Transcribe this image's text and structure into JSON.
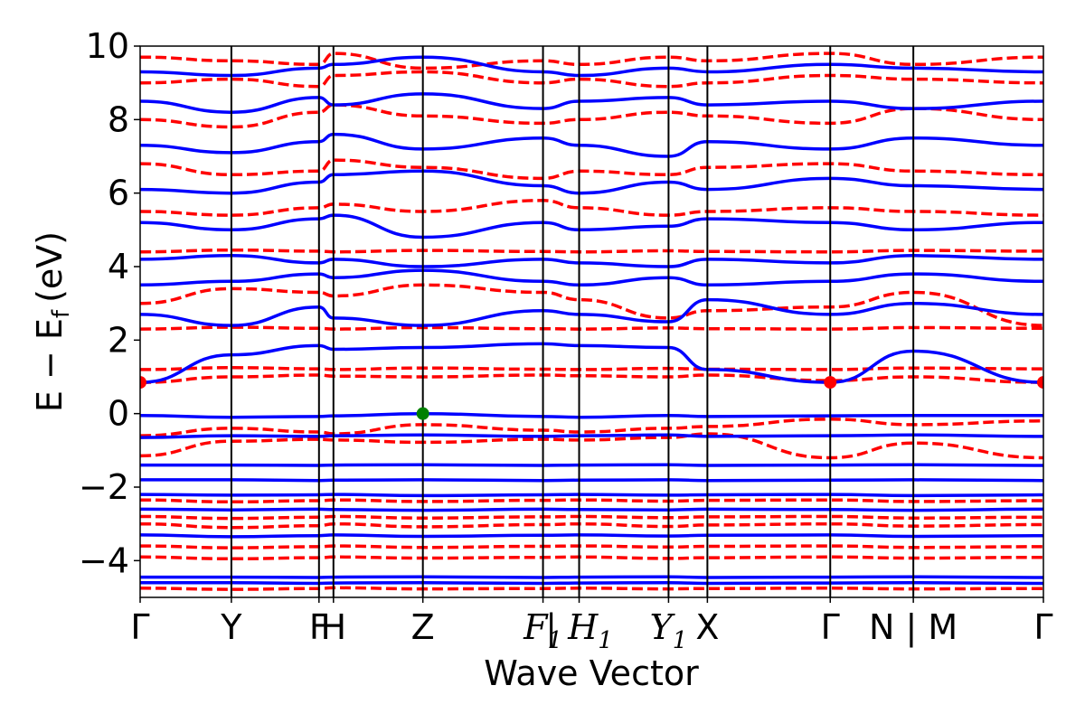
{
  "chart_data": {
    "type": "line",
    "xlabel": "Wave Vector",
    "ylabel": "E − E",
    "ylabel_subscript": "f",
    "ylabel_unit": "(eV)",
    "ylim": [
      -5,
      10
    ],
    "xlim": [
      0,
      10
    ],
    "yticks": [
      10,
      8,
      6,
      4,
      2,
      0,
      -2,
      -4
    ],
    "ytick_labels": [
      "10",
      "8",
      "6",
      "4",
      "2",
      "0",
      "−2",
      "−4"
    ],
    "grid": false,
    "legend": "none",
    "kpath": [
      {
        "x": 0.0,
        "label": "Γ",
        "italic": false
      },
      {
        "x": 1.01,
        "label": "Y",
        "italic": false
      },
      {
        "x": 1.98,
        "label": "F",
        "italic": false
      },
      {
        "x": 2.14,
        "label": "H",
        "italic": false
      },
      {
        "x": 3.13,
        "label": "Z",
        "italic": false
      },
      {
        "x": 4.46,
        "label": "F",
        "sub": "1",
        "italic": true
      },
      {
        "x": 4.86,
        "label": "| H",
        "sub": "1",
        "italic": true
      },
      {
        "x": 5.85,
        "label": "Y",
        "sub": "1",
        "italic": true
      },
      {
        "x": 6.28,
        "label": "X",
        "italic": false
      },
      {
        "x": 7.64,
        "label": "Γ",
        "italic": false
      },
      {
        "x": 8.56,
        "label": "N | M",
        "italic": false
      },
      {
        "x": 10.0,
        "label": "Γ",
        "italic": false
      }
    ],
    "series": [
      {
        "style": "dashed",
        "color": "#ff0000",
        "bands": [
          [
            -4.75,
            -4.78,
            -4.76,
            -4.74,
            -4.77,
            -4.76,
            -4.75,
            -4.77,
            -4.76,
            -4.75,
            -4.77,
            -4.76
          ],
          [
            -3.9,
            -3.95,
            -3.92,
            -3.9,
            -3.93,
            -3.91,
            -3.9,
            -3.94,
            -3.92,
            -3.9,
            -3.93,
            -3.91
          ],
          [
            -3.6,
            -3.65,
            -3.62,
            -3.6,
            -3.64,
            -3.61,
            -3.6,
            -3.63,
            -3.61,
            -3.6,
            -3.64,
            -3.62
          ],
          [
            -3.0,
            -3.1,
            -3.05,
            -3.0,
            -3.08,
            -3.02,
            -3.0,
            -3.07,
            -3.03,
            -3.0,
            -3.06,
            -3.02
          ],
          [
            -2.8,
            -2.85,
            -2.82,
            -2.8,
            -2.84,
            -2.81,
            -2.8,
            -2.83,
            -2.81,
            -2.8,
            -2.84,
            -2.82
          ],
          [
            -2.35,
            -2.4,
            -2.37,
            -2.35,
            -2.39,
            -2.36,
            -2.35,
            -2.38,
            -2.36,
            -2.35,
            -2.39,
            -2.37
          ],
          [
            -1.15,
            -0.75,
            -0.7,
            -0.72,
            -0.78,
            -0.7,
            -0.72,
            -0.65,
            -0.55,
            -1.2,
            -0.8,
            -1.2
          ],
          [
            -0.6,
            -0.4,
            -0.5,
            -0.55,
            -0.3,
            -0.45,
            -0.5,
            -0.4,
            -0.35,
            -0.15,
            -0.3,
            -0.2
          ],
          [
            0.85,
            1.0,
            1.05,
            1.02,
            1.0,
            1.05,
            1.03,
            1.0,
            1.05,
            0.9,
            1.0,
            0.85
          ],
          [
            1.2,
            1.25,
            1.22,
            1.2,
            1.24,
            1.21,
            1.2,
            1.23,
            1.21,
            1.2,
            1.24,
            1.22
          ],
          [
            2.3,
            2.35,
            2.32,
            2.3,
            2.34,
            2.31,
            2.3,
            2.33,
            2.31,
            2.3,
            2.34,
            2.32
          ],
          [
            3.0,
            3.4,
            3.3,
            3.2,
            3.5,
            3.3,
            3.1,
            2.6,
            2.8,
            2.9,
            3.3,
            2.4
          ],
          [
            4.4,
            4.45,
            4.42,
            4.4,
            4.44,
            4.41,
            4.4,
            4.43,
            4.41,
            4.4,
            4.44,
            4.42
          ],
          [
            5.5,
            5.4,
            5.6,
            5.7,
            5.5,
            5.8,
            5.6,
            5.4,
            5.5,
            5.6,
            5.5,
            5.4
          ],
          [
            6.8,
            6.5,
            6.6,
            6.9,
            6.7,
            6.4,
            6.6,
            6.5,
            6.7,
            6.8,
            6.6,
            6.5
          ],
          [
            8.0,
            7.8,
            8.2,
            8.4,
            8.1,
            7.9,
            8.0,
            8.2,
            8.1,
            7.9,
            8.3,
            8.0
          ],
          [
            9.0,
            9.1,
            8.9,
            9.2,
            9.3,
            9.0,
            9.1,
            8.9,
            9.0,
            9.2,
            9.1,
            9.0
          ],
          [
            9.7,
            9.6,
            9.5,
            9.8,
            9.4,
            9.6,
            9.5,
            9.7,
            9.6,
            9.8,
            9.5,
            9.7
          ]
        ]
      },
      {
        "style": "solid",
        "color": "#0000ff",
        "bands": [
          [
            -4.6,
            -4.6,
            -4.62,
            -4.61,
            -4.6,
            -4.62,
            -4.61,
            -4.6,
            -4.62,
            -4.61,
            -4.6,
            -4.62
          ],
          [
            -4.45,
            -4.45,
            -4.46,
            -4.45,
            -4.44,
            -4.46,
            -4.45,
            -4.44,
            -4.46,
            -4.45,
            -4.44,
            -4.46
          ],
          [
            -3.3,
            -3.35,
            -3.32,
            -3.3,
            -3.34,
            -3.31,
            -3.3,
            -3.33,
            -3.31,
            -3.3,
            -3.34,
            -3.32
          ],
          [
            -2.6,
            -2.62,
            -2.6,
            -2.61,
            -2.63,
            -2.6,
            -2.61,
            -2.62,
            -2.6,
            -2.61,
            -2.63,
            -2.6
          ],
          [
            -2.2,
            -2.22,
            -2.21,
            -2.2,
            -2.23,
            -2.21,
            -2.2,
            -2.22,
            -2.21,
            -2.2,
            -2.23,
            -2.21
          ],
          [
            -1.8,
            -1.8,
            -1.82,
            -1.81,
            -1.8,
            -1.82,
            -1.81,
            -1.8,
            -1.82,
            -1.81,
            -1.8,
            -1.82
          ],
          [
            -1.4,
            -1.4,
            -1.41,
            -1.4,
            -1.39,
            -1.41,
            -1.4,
            -1.39,
            -1.41,
            -1.4,
            -1.39,
            -1.41
          ],
          [
            -0.65,
            -0.6,
            -0.62,
            -0.6,
            -0.58,
            -0.62,
            -0.6,
            -0.58,
            -0.62,
            -0.6,
            -0.58,
            -0.62
          ],
          [
            -0.05,
            -0.1,
            -0.08,
            -0.06,
            0.0,
            -0.08,
            -0.1,
            -0.05,
            -0.08,
            -0.06,
            -0.05,
            -0.05
          ],
          [
            0.85,
            1.6,
            1.85,
            1.75,
            1.8,
            1.9,
            1.85,
            1.8,
            1.2,
            0.85,
            1.7,
            0.85
          ],
          [
            2.7,
            2.4,
            2.9,
            2.6,
            2.4,
            2.8,
            2.7,
            2.5,
            3.1,
            2.7,
            3.0,
            2.7
          ],
          [
            3.5,
            3.6,
            3.8,
            3.7,
            3.9,
            3.6,
            3.5,
            3.7,
            3.5,
            3.6,
            3.8,
            3.6
          ],
          [
            4.2,
            4.3,
            4.1,
            4.2,
            4.0,
            4.2,
            4.1,
            4.0,
            4.2,
            4.1,
            4.3,
            4.2
          ],
          [
            5.2,
            5.0,
            5.3,
            5.4,
            4.8,
            5.2,
            5.0,
            5.1,
            5.3,
            5.2,
            5.0,
            5.2
          ],
          [
            6.1,
            6.0,
            6.3,
            6.5,
            6.6,
            6.2,
            6.0,
            6.3,
            6.1,
            6.4,
            6.2,
            6.1
          ],
          [
            7.3,
            7.1,
            7.4,
            7.6,
            7.2,
            7.5,
            7.3,
            7.0,
            7.4,
            7.2,
            7.5,
            7.3
          ],
          [
            8.5,
            8.2,
            8.6,
            8.4,
            8.7,
            8.3,
            8.5,
            8.6,
            8.4,
            8.5,
            8.3,
            8.5
          ],
          [
            9.3,
            9.2,
            9.4,
            9.5,
            9.7,
            9.3,
            9.2,
            9.4,
            9.3,
            9.5,
            9.4,
            9.3
          ]
        ]
      }
    ],
    "markers": [
      {
        "x": 0.0,
        "y": 0.85,
        "color": "#ff0000"
      },
      {
        "x": 7.64,
        "y": 0.85,
        "color": "#ff0000"
      },
      {
        "x": 10.0,
        "y": 0.85,
        "color": "#ff0000"
      },
      {
        "x": 3.13,
        "y": 0.0,
        "color": "#008000"
      }
    ]
  }
}
